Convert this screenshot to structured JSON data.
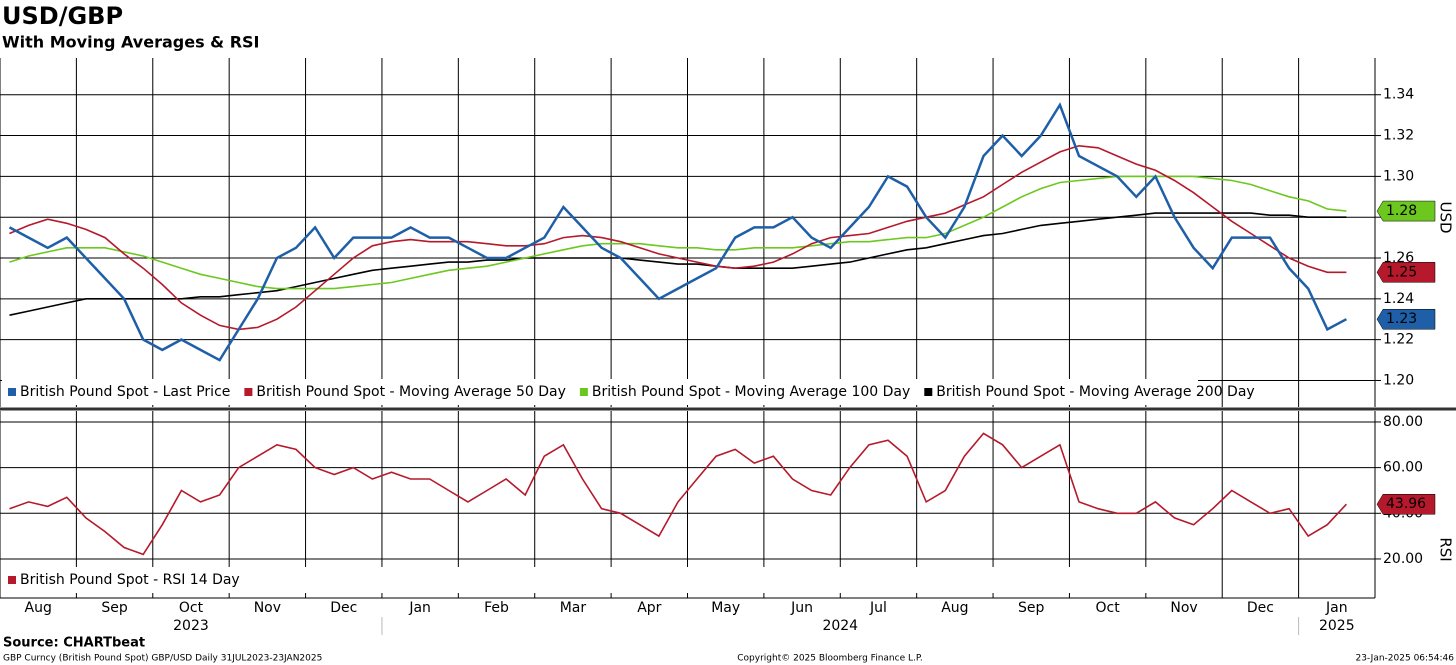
{
  "chart_data": [
    {
      "type": "line",
      "title": "USD/GBP",
      "subtitle": "With Moving Averages & RSI",
      "axis_label": "USD",
      "ylim": [
        1.187,
        1.358
      ],
      "yticks": [
        {
          "value": 1.2,
          "label": "1.20"
        },
        1.22,
        1.24,
        1.26,
        1.28,
        {
          "value": 1.3,
          "label": "1.30"
        },
        1.32,
        1.34
      ],
      "grid": true,
      "series": [
        {
          "name": "British Pound Spot - Last Price",
          "color": "#1f5fa8",
          "end_label": "1.23",
          "values": [
            1.275,
            1.27,
            1.265,
            1.27,
            1.26,
            1.25,
            1.24,
            1.22,
            1.215,
            1.22,
            1.215,
            1.21,
            1.225,
            1.24,
            1.26,
            1.265,
            1.275,
            1.26,
            1.27,
            1.27,
            1.27,
            1.275,
            1.27,
            1.27,
            1.265,
            1.26,
            1.26,
            1.265,
            1.27,
            1.285,
            1.275,
            1.265,
            1.26,
            1.25,
            1.24,
            1.245,
            1.25,
            1.255,
            1.27,
            1.275,
            1.275,
            1.28,
            1.27,
            1.265,
            1.275,
            1.285,
            1.3,
            1.295,
            1.28,
            1.27,
            1.285,
            1.31,
            1.32,
            1.31,
            1.32,
            1.335,
            1.31,
            1.305,
            1.3,
            1.29,
            1.3,
            1.28,
            1.265,
            1.255,
            1.27,
            1.27,
            1.27,
            1.255,
            1.245,
            1.225,
            1.23,
            null
          ]
        },
        {
          "name": "British Pound Spot - Moving Average 50 Day",
          "color": "#b5192b",
          "end_label": "1.25",
          "values": [
            1.272,
            1.276,
            1.279,
            1.277,
            1.274,
            1.27,
            1.262,
            1.255,
            1.247,
            1.238,
            1.232,
            1.227,
            1.225,
            1.226,
            1.23,
            1.236,
            1.244,
            1.252,
            1.26,
            1.266,
            1.268,
            1.269,
            1.268,
            1.268,
            1.268,
            1.267,
            1.266,
            1.266,
            1.267,
            1.27,
            1.271,
            1.27,
            1.268,
            1.265,
            1.262,
            1.26,
            1.258,
            1.256,
            1.255,
            1.256,
            1.258,
            1.262,
            1.267,
            1.27,
            1.271,
            1.272,
            1.275,
            1.278,
            1.28,
            1.282,
            1.286,
            1.29,
            1.296,
            1.302,
            1.307,
            1.312,
            1.315,
            1.314,
            1.31,
            1.306,
            1.303,
            1.298,
            1.292,
            1.285,
            1.278,
            1.272,
            1.266,
            1.26,
            1.256,
            1.253,
            1.253,
            null
          ]
        },
        {
          "name": "British Pound Spot - Moving Average 100 Day",
          "color": "#6cc81e",
          "end_label": "1.28",
          "values": [
            1.258,
            1.261,
            1.263,
            1.265,
            1.265,
            1.265,
            1.263,
            1.261,
            1.258,
            1.255,
            1.252,
            1.25,
            1.248,
            1.246,
            1.245,
            1.245,
            1.245,
            1.245,
            1.246,
            1.247,
            1.248,
            1.25,
            1.252,
            1.254,
            1.255,
            1.256,
            1.258,
            1.26,
            1.262,
            1.264,
            1.266,
            1.267,
            1.267,
            1.267,
            1.266,
            1.265,
            1.265,
            1.264,
            1.264,
            1.265,
            1.265,
            1.265,
            1.266,
            1.267,
            1.268,
            1.268,
            1.269,
            1.27,
            1.27,
            1.272,
            1.276,
            1.28,
            1.285,
            1.29,
            1.294,
            1.297,
            1.298,
            1.299,
            1.3,
            1.3,
            1.3,
            1.3,
            1.3,
            1.299,
            1.298,
            1.296,
            1.293,
            1.29,
            1.288,
            1.284,
            1.283,
            null
          ]
        },
        {
          "name": "British Pound Spot - Moving Average 200 Day",
          "color": "#000000",
          "end_label": null,
          "values": [
            1.232,
            1.234,
            1.236,
            1.238,
            1.24,
            1.24,
            1.24,
            1.24,
            1.24,
            1.24,
            1.241,
            1.241,
            1.242,
            1.243,
            1.244,
            1.246,
            1.248,
            1.25,
            1.252,
            1.254,
            1.255,
            1.256,
            1.257,
            1.258,
            1.258,
            1.259,
            1.259,
            1.26,
            1.26,
            1.26,
            1.26,
            1.26,
            1.26,
            1.259,
            1.258,
            1.257,
            1.257,
            1.256,
            1.255,
            1.255,
            1.255,
            1.255,
            1.256,
            1.257,
            1.258,
            1.26,
            1.262,
            1.264,
            1.265,
            1.267,
            1.269,
            1.271,
            1.272,
            1.274,
            1.276,
            1.277,
            1.278,
            1.279,
            1.28,
            1.281,
            1.282,
            1.282,
            1.282,
            1.282,
            1.282,
            1.282,
            1.281,
            1.281,
            1.28,
            1.28,
            1.28,
            null
          ]
        }
      ]
    },
    {
      "type": "line",
      "axis_label": "RSI",
      "ylim": [
        2.9,
        84.8
      ],
      "yticks": [
        {
          "value": 20,
          "label": "20.00"
        },
        {
          "value": 40,
          "label": "40.00"
        },
        {
          "value": 60,
          "label": "60.00"
        },
        {
          "value": 80,
          "label": "80.00"
        }
      ],
      "grid": true,
      "categories": [
        null,
        "Aug",
        null,
        null,
        null,
        "Sep",
        null,
        null,
        null,
        "Oct",
        null,
        null,
        null,
        "Nov",
        null,
        null,
        null,
        "Dec",
        null,
        null,
        null,
        "Jan",
        null,
        null,
        null,
        "Feb",
        null,
        null,
        null,
        "Mar",
        null,
        null,
        null,
        "Apr",
        null,
        null,
        null,
        "May",
        null,
        null,
        null,
        "Jun",
        null,
        null,
        null,
        "Jul",
        null,
        null,
        null,
        "Aug",
        null,
        null,
        null,
        "Sep",
        null,
        null,
        null,
        "Oct",
        null,
        null,
        null,
        "Nov",
        null,
        null,
        null,
        "Dec",
        null,
        null,
        null,
        "Jan",
        null,
        null
      ],
      "years": [
        "2023",
        "2024",
        "2025"
      ],
      "series": [
        {
          "name": "British Pound Spot - RSI 14 Day",
          "color": "#b5192b",
          "end_label": "43.96",
          "values": [
            42,
            45,
            43,
            47,
            38,
            32,
            25,
            22,
            35,
            50,
            45,
            48,
            60,
            65,
            70,
            68,
            60,
            57,
            60,
            55,
            58,
            55,
            55,
            50,
            45,
            50,
            55,
            48,
            65,
            70,
            55,
            42,
            40,
            35,
            30,
            45,
            55,
            65,
            68,
            62,
            65,
            55,
            50,
            48,
            60,
            70,
            72,
            65,
            45,
            50,
            65,
            75,
            70,
            60,
            65,
            70,
            45,
            42,
            40,
            40,
            45,
            38,
            35,
            42,
            50,
            45,
            40,
            42,
            30,
            35,
            43.96,
            null
          ]
        }
      ]
    }
  ],
  "footer": {
    "source": "Source: CHARTbeat",
    "left": "GBP Curncy (British Pound Spot) GBP/USD  Daily 31JUL2023-23JAN2025",
    "center": "Copyright© 2025 Bloomberg Finance L.P.",
    "right": "23-Jan-2025 06:54:46"
  }
}
